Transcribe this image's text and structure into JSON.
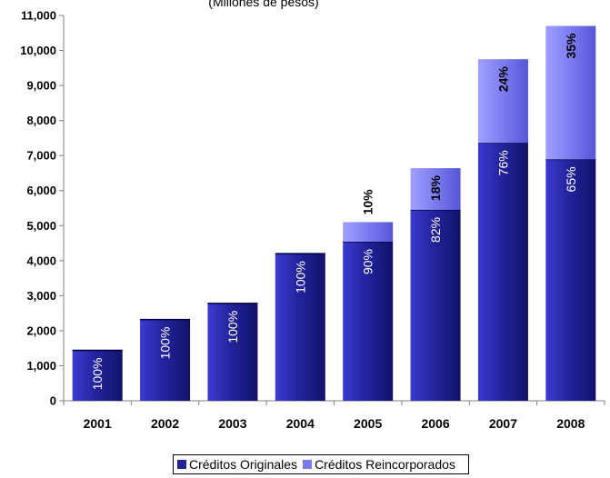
{
  "chart_data": {
    "type": "bar",
    "subtitle": "(Millones de pesos)",
    "categories": [
      "2001",
      "2002",
      "2003",
      "2004",
      "2005",
      "2006",
      "2007",
      "2008"
    ],
    "series": [
      {
        "name": "Créditos Originales",
        "color": "#22229a",
        "values": [
          1440,
          2320,
          2780,
          4200,
          4540,
          5450,
          7360,
          6890
        ],
        "labels": [
          "100%",
          "100%",
          "100%",
          "100%",
          "90%",
          "82%",
          "76%",
          "65%"
        ]
      },
      {
        "name": "Créditos Reincorporados",
        "color": "#7b7bf0",
        "values": [
          0,
          0,
          0,
          0,
          560,
          1190,
          2390,
          3810
        ],
        "labels": [
          "",
          "",
          "",
          "",
          "10%",
          "18%",
          "24%",
          "35%"
        ]
      }
    ],
    "stacked": true,
    "ylim": [
      0,
      11000
    ],
    "yticks": [
      "0",
      "1,000",
      "2,000",
      "3,000",
      "4,000",
      "5,000",
      "6,000",
      "7,000",
      "8,000",
      "9,000",
      "10,000",
      "11,000"
    ],
    "grid": false,
    "legend_position": "bottom"
  }
}
